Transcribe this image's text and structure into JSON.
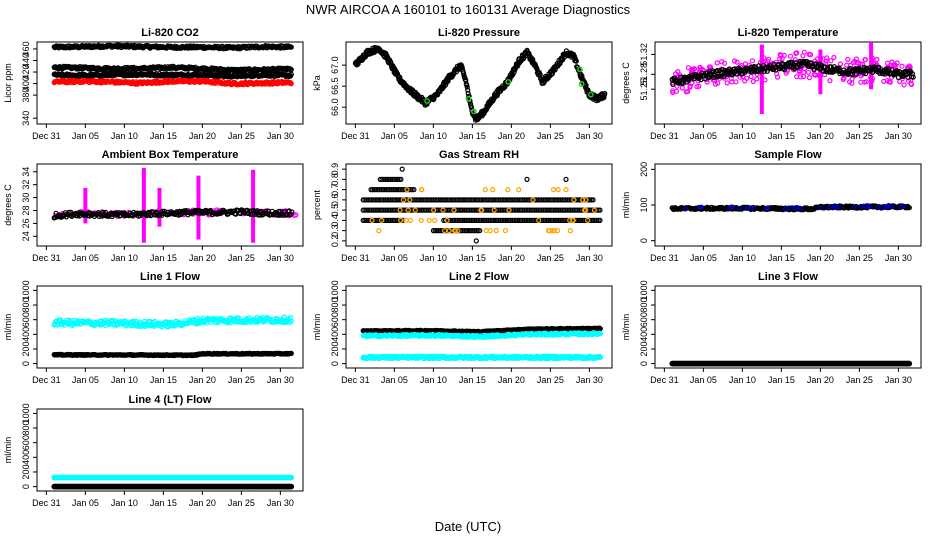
{
  "figure": {
    "title": "NWR   AIRCOA A   160101 to 160131   Average Diagnostics",
    "xlabel": "Date (UTC)",
    "x_ticks": [
      "Dec 31",
      "Jan 05",
      "Jan 10",
      "Jan 15",
      "Jan 20",
      "Jan 25",
      "Jan 30"
    ],
    "x_tick_days": [
      0,
      5,
      10,
      15,
      20,
      25,
      30
    ],
    "x_range_days": [
      -1.2,
      32.9
    ]
  },
  "colors": {
    "black": "#000000",
    "red": "#ff0000",
    "magenta": "#ff00ff",
    "green": "#22cc22",
    "orange": "#ffa500",
    "cyan": "#00ffff",
    "blue": "#0000cc"
  },
  "chart_data": [
    {
      "id": "co2",
      "type": "scatter",
      "title": "Li-820 CO2",
      "ylabel": "Licor ppm",
      "ylim": [
        330,
        472
      ],
      "yticks": [
        340,
        380,
        400,
        420,
        440,
        460
      ],
      "series": [
        {
          "name": "sample",
          "color": "black",
          "values": [
            [
              1,
              463
            ],
            [
              5,
              464
            ],
            [
              8,
              465
            ],
            [
              12,
              464
            ],
            [
              16,
              463
            ],
            [
              20,
              463
            ],
            [
              24,
              462
            ],
            [
              28,
              464
            ],
            [
              31.5,
              463
            ]
          ]
        },
        {
          "name": "line1",
          "color": "black",
          "values": [
            [
              1,
              428
            ],
            [
              5,
              427
            ],
            [
              8,
              426
            ],
            [
              12,
              426
            ],
            [
              16,
              428
            ],
            [
              20,
              426
            ],
            [
              24,
              423
            ],
            [
              28,
              424
            ],
            [
              31.5,
              425
            ]
          ]
        },
        {
          "name": "line2",
          "color": "black",
          "values": [
            [
              1,
              415
            ],
            [
              5,
              414
            ],
            [
              8,
              415
            ],
            [
              12,
              416
            ],
            [
              16,
              415
            ],
            [
              20,
              415
            ],
            [
              24,
              413
            ],
            [
              28,
              415
            ],
            [
              31.5,
              414
            ]
          ]
        },
        {
          "name": "line3",
          "color": "red",
          "values": [
            [
              1,
              403
            ],
            [
              5,
              404
            ],
            [
              8,
              403
            ],
            [
              12,
              401
            ],
            [
              16,
              404
            ],
            [
              20,
              404
            ],
            [
              24,
              400
            ],
            [
              28,
              401
            ],
            [
              31.5,
              402
            ]
          ]
        }
      ]
    },
    {
      "id": "pressure",
      "type": "scatter",
      "title": "Li-820 Pressure",
      "ylabel": "kPa",
      "ylim": [
        65.6,
        67.55
      ],
      "yticks": [
        66.0,
        66.5,
        67.0
      ],
      "series": [
        {
          "name": "pressure",
          "color": "black",
          "values": [
            [
              0,
              67.0
            ],
            [
              1.5,
              67.3
            ],
            [
              3,
              67.4
            ],
            [
              4,
              67.2
            ],
            [
              5.5,
              66.7
            ],
            [
              7,
              66.4
            ],
            [
              9,
              66.1
            ],
            [
              10.5,
              66.3
            ],
            [
              12,
              66.7
            ],
            [
              13.5,
              67.0
            ],
            [
              14.2,
              66.6
            ],
            [
              14.8,
              66.0
            ],
            [
              15.5,
              65.7
            ],
            [
              16.5,
              65.9
            ],
            [
              18,
              66.3
            ],
            [
              19.5,
              66.6
            ],
            [
              21,
              67.1
            ],
            [
              22,
              67.3
            ],
            [
              23,
              67.0
            ],
            [
              24,
              66.6
            ],
            [
              25.5,
              66.9
            ],
            [
              27,
              67.3
            ],
            [
              28,
              67.2
            ],
            [
              29,
              66.7
            ],
            [
              30,
              66.3
            ],
            [
              31,
              66.2
            ],
            [
              32,
              66.3
            ]
          ]
        }
      ]
    },
    {
      "id": "licor_temp",
      "type": "scatter",
      "title": "Li-820 Temperature",
      "ylabel": "degrees C",
      "ylim": [
        51.18,
        51.345
      ],
      "yticks": [
        51.25,
        51.28,
        51.32
      ],
      "series": [
        {
          "name": "temperature",
          "color": "black",
          "values": [
            [
              1,
              51.265
            ],
            [
              3,
              51.27
            ],
            [
              6,
              51.28
            ],
            [
              9,
              51.285
            ],
            [
              12,
              51.29
            ],
            [
              15,
              51.295
            ],
            [
              18,
              51.3
            ],
            [
              21,
              51.29
            ],
            [
              24,
              51.285
            ],
            [
              27,
              51.29
            ],
            [
              30,
              51.28
            ],
            [
              32,
              51.28
            ]
          ]
        }
      ]
    },
    {
      "id": "box_temp",
      "type": "scatter",
      "title": "Ambient Box Temperature",
      "ylabel": "degrees C",
      "ylim": [
        22.5,
        35.2
      ],
      "yticks": [
        24,
        26,
        28,
        30,
        32,
        34
      ],
      "series": [
        {
          "name": "box",
          "color": "black",
          "values": [
            [
              1,
              27.2
            ],
            [
              4,
              27.5
            ],
            [
              7,
              27.4
            ],
            [
              10,
              27.3
            ],
            [
              13,
              27.5
            ],
            [
              16,
              27.6
            ],
            [
              19,
              27.7
            ],
            [
              22,
              27.7
            ],
            [
              25,
              27.8
            ],
            [
              28,
              27.6
            ],
            [
              31.5,
              27.6
            ]
          ]
        }
      ]
    },
    {
      "id": "rh",
      "type": "scatter",
      "title": "Gas Stream RH",
      "ylabel": "percent",
      "ylim": [
        0.15,
        0.95
      ],
      "yticks": [
        0.2,
        0.3,
        0.4,
        0.5,
        0.6,
        0.7,
        0.8,
        0.9
      ],
      "series": [
        {
          "name": "rh_levels",
          "color": "black",
          "values": [
            [
              0.4,
              0.9
            ],
            [
              0.5,
              0.9
            ],
            [
              0.6,
              0.9
            ],
            [
              0.7,
              0.9
            ],
            [
              0.3,
              0.9
            ]
          ]
        }
      ]
    },
    {
      "id": "sample_flow",
      "type": "scatter",
      "title": "Sample Flow",
      "ylabel": "ml/min",
      "ylim": [
        -15,
        215
      ],
      "yticks": [
        0,
        100,
        200
      ],
      "series": [
        {
          "name": "sample",
          "color": "black",
          "values": [
            [
              1,
              90
            ],
            [
              10,
              91
            ],
            [
              19,
              89
            ],
            [
              20,
              94
            ],
            [
              31.5,
              95
            ]
          ]
        }
      ]
    },
    {
      "id": "line1_flow",
      "type": "scatter",
      "title": "Line 1 Flow",
      "ylabel": "ml/min",
      "ylim": [
        -60,
        1060
      ],
      "yticks": [
        0,
        200,
        400,
        600,
        800,
        1000
      ],
      "series": [
        {
          "name": "cyan",
          "color": "cyan",
          "values": [
            [
              1,
              560
            ],
            [
              10,
              550
            ],
            [
              16,
              535
            ],
            [
              20,
              590
            ],
            [
              31.5,
              600
            ]
          ]
        },
        {
          "name": "black",
          "color": "black",
          "values": [
            [
              1,
              120
            ],
            [
              10,
              118
            ],
            [
              19,
              115
            ],
            [
              20,
              135
            ],
            [
              31.5,
              135
            ]
          ]
        }
      ]
    },
    {
      "id": "line2_flow",
      "type": "scatter",
      "title": "Line 2 Flow",
      "ylabel": "ml/min",
      "ylim": [
        -60,
        1060
      ],
      "yticks": [
        0,
        200,
        400,
        600,
        800,
        1000
      ],
      "series": [
        {
          "name": "black",
          "color": "black",
          "values": [
            [
              1,
              445
            ],
            [
              10,
              450
            ],
            [
              16,
              435
            ],
            [
              22,
              470
            ],
            [
              31.5,
              480
            ]
          ]
        },
        {
          "name": "cyan",
          "color": "cyan",
          "values": [
            [
              1,
              380
            ],
            [
              10,
              385
            ],
            [
              16,
              370
            ],
            [
              22,
              400
            ],
            [
              31.5,
              410
            ]
          ]
        },
        {
          "name": "cyan_low",
          "color": "cyan",
          "values": [
            [
              1,
              85
            ],
            [
              31.5,
              85
            ]
          ]
        }
      ]
    },
    {
      "id": "line3_flow",
      "type": "scatter",
      "title": "Line 3 Flow",
      "ylabel": "ml/min",
      "ylim": [
        -60,
        1060
      ],
      "yticks": [
        0,
        200,
        400,
        600,
        800,
        1000
      ],
      "series": [
        {
          "name": "black",
          "color": "black",
          "values": [
            [
              1,
              0
            ],
            [
              31.5,
              0
            ]
          ]
        }
      ]
    },
    {
      "id": "line4_flow",
      "type": "scatter",
      "title": "Line 4 (LT) Flow",
      "ylabel": "ml/min",
      "ylim": [
        -60,
        1060
      ],
      "yticks": [
        0,
        200,
        400,
        600,
        800,
        1000
      ],
      "series": [
        {
          "name": "cyan",
          "color": "cyan",
          "values": [
            [
              1,
              125
            ],
            [
              31.5,
              125
            ]
          ]
        },
        {
          "name": "black",
          "color": "black",
          "values": [
            [
              1,
              0
            ],
            [
              31.5,
              0
            ]
          ]
        }
      ]
    }
  ]
}
